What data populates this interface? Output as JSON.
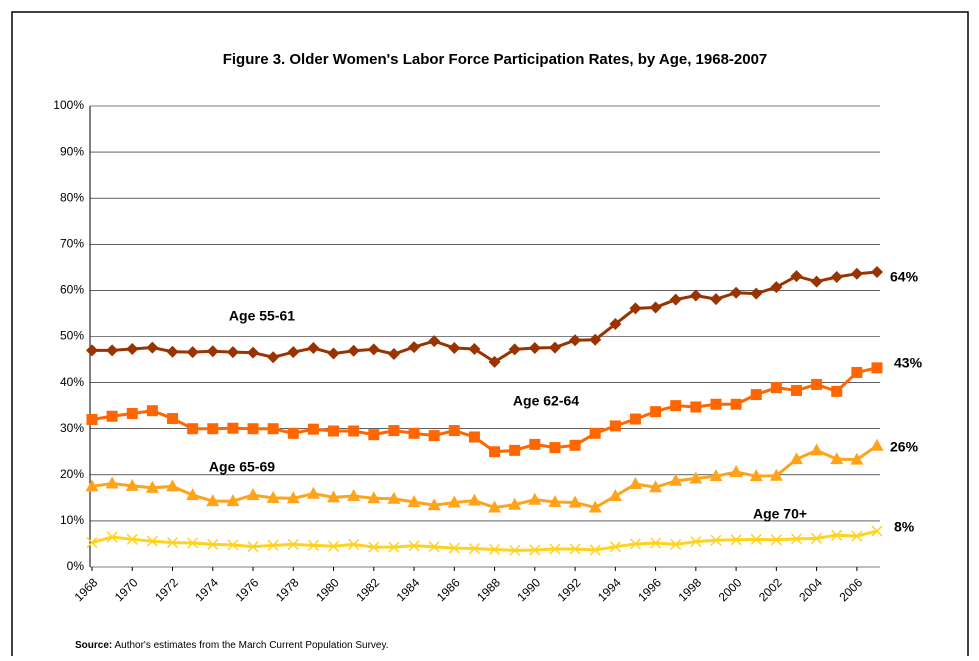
{
  "chart_data": {
    "type": "line",
    "title": "Figure 3. Older Women's Labor Force Participation Rates, by Age, 1968-2007",
    "source_label": "Source:",
    "source_text": " Author's estimates from the March Current Population Survey.",
    "x": [
      1968,
      1969,
      1970,
      1971,
      1972,
      1973,
      1974,
      1975,
      1976,
      1977,
      1978,
      1979,
      1980,
      1981,
      1982,
      1983,
      1984,
      1985,
      1986,
      1987,
      1988,
      1989,
      1990,
      1991,
      1992,
      1993,
      1994,
      1995,
      1996,
      1997,
      1998,
      1999,
      2000,
      2001,
      2002,
      2003,
      2004,
      2005,
      2006,
      2007
    ],
    "xlim": [
      1968,
      2007
    ],
    "xticks": [
      1968,
      1970,
      1972,
      1974,
      1976,
      1978,
      1980,
      1982,
      1984,
      1986,
      1988,
      1990,
      1992,
      1994,
      1996,
      1998,
      2000,
      2002,
      2004,
      2006
    ],
    "ylim": [
      0,
      100
    ],
    "yticks": [
      {
        "value": 0,
        "label": "0%"
      },
      {
        "value": 10,
        "label": "10%"
      },
      {
        "value": 20,
        "label": "20%"
      },
      {
        "value": 30,
        "label": "30%"
      },
      {
        "value": 40,
        "label": "40%"
      },
      {
        "value": 50,
        "label": "50%"
      },
      {
        "value": 60,
        "label": "60%"
      },
      {
        "value": 70,
        "label": "70%"
      },
      {
        "value": 80,
        "label": "80%"
      },
      {
        "value": 90,
        "label": "90%"
      },
      {
        "value": 100,
        "label": "100%"
      }
    ],
    "grid": true,
    "series": [
      {
        "name": "Age 55-61",
        "color": "#993300",
        "marker": "diamond",
        "end_label": "64%",
        "values": [
          47.0,
          47.0,
          47.3,
          47.6,
          46.7,
          46.6,
          46.8,
          46.6,
          46.5,
          45.5,
          46.6,
          47.5,
          46.3,
          46.9,
          47.2,
          46.2,
          47.7,
          49.0,
          47.5,
          47.3,
          44.5,
          47.2,
          47.5,
          47.6,
          49.2,
          49.3,
          52.7,
          56.1,
          56.3,
          58.0,
          58.9,
          58.1,
          59.5,
          59.3,
          60.7,
          63.1,
          61.9,
          62.9,
          63.6,
          64.0
        ]
      },
      {
        "name": "Age 62-64",
        "color": "#ff6600",
        "marker": "square",
        "end_label": "43%",
        "values": [
          32.0,
          32.7,
          33.3,
          33.9,
          32.2,
          30.0,
          30.0,
          30.1,
          30.0,
          30.0,
          29.0,
          29.9,
          29.5,
          29.5,
          28.7,
          29.6,
          29.0,
          28.5,
          29.6,
          28.2,
          25.0,
          25.3,
          26.6,
          25.9,
          26.4,
          29.0,
          30.6,
          32.1,
          33.7,
          35.0,
          34.7,
          35.3,
          35.3,
          37.4,
          38.9,
          38.3,
          39.6,
          38.1,
          42.2,
          43.2
        ]
      },
      {
        "name": "Age 65-69",
        "color": "#ffa31a",
        "marker": "triangle",
        "end_label": "26%",
        "values": [
          17.5,
          18.1,
          17.6,
          17.2,
          17.5,
          15.6,
          14.3,
          14.3,
          15.6,
          15.0,
          14.9,
          15.9,
          15.1,
          15.4,
          14.9,
          14.8,
          14.1,
          13.4,
          14.0,
          14.4,
          12.9,
          13.5,
          14.6,
          14.1,
          14.0,
          12.9,
          15.4,
          18.0,
          17.3,
          18.7,
          19.2,
          19.7,
          20.6,
          19.7,
          19.8,
          23.4,
          25.3,
          23.4,
          23.3,
          26.3
        ]
      },
      {
        "name": "Age 70+",
        "color": "#ffd21f",
        "marker": "x",
        "end_label": "8%",
        "values": [
          5.3,
          6.5,
          6.0,
          5.6,
          5.3,
          5.2,
          4.9,
          4.8,
          4.4,
          4.7,
          4.9,
          4.7,
          4.5,
          4.9,
          4.3,
          4.3,
          4.6,
          4.4,
          4.1,
          4.0,
          3.8,
          3.6,
          3.7,
          3.9,
          3.9,
          3.7,
          4.4,
          5.0,
          5.2,
          4.9,
          5.5,
          5.8,
          5.9,
          6.0,
          5.9,
          6.1,
          6.2,
          6.9,
          6.7,
          7.8
        ]
      }
    ]
  }
}
